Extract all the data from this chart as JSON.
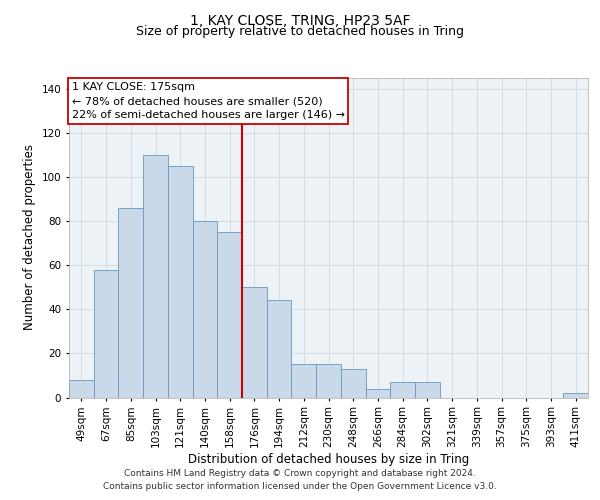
{
  "title": "1, KAY CLOSE, TRING, HP23 5AF",
  "subtitle": "Size of property relative to detached houses in Tring",
  "xlabel": "Distribution of detached houses by size in Tring",
  "ylabel": "Number of detached properties",
  "categories": [
    "49sqm",
    "67sqm",
    "85sqm",
    "103sqm",
    "121sqm",
    "140sqm",
    "158sqm",
    "176sqm",
    "194sqm",
    "212sqm",
    "230sqm",
    "248sqm",
    "266sqm",
    "284sqm",
    "302sqm",
    "321sqm",
    "339sqm",
    "357sqm",
    "375sqm",
    "393sqm",
    "411sqm"
  ],
  "values": [
    8,
    58,
    86,
    110,
    105,
    80,
    75,
    50,
    44,
    15,
    15,
    13,
    4,
    7,
    7,
    0,
    0,
    0,
    0,
    0,
    2
  ],
  "bar_color": "#c9d9ea",
  "bar_edge_color": "#6699bb",
  "marker_line_color": "#cc0000",
  "annotation_line0": "1 KAY CLOSE: 175sqm",
  "annotation_line1": "← 78% of detached houses are smaller (520)",
  "annotation_line2": "22% of semi-detached houses are larger (146) →",
  "ylim": [
    0,
    145
  ],
  "yticks": [
    0,
    20,
    40,
    60,
    80,
    100,
    120,
    140
  ],
  "grid_color": "#d0d8e0",
  "background_color": "#edf2f7",
  "footer": "Contains HM Land Registry data © Crown copyright and database right 2024.\nContains public sector information licensed under the Open Government Licence v3.0.",
  "title_fontsize": 10,
  "subtitle_fontsize": 9,
  "xlabel_fontsize": 8.5,
  "ylabel_fontsize": 8.5,
  "tick_fontsize": 7.5,
  "footer_fontsize": 6.5,
  "annot_fontsize": 8
}
